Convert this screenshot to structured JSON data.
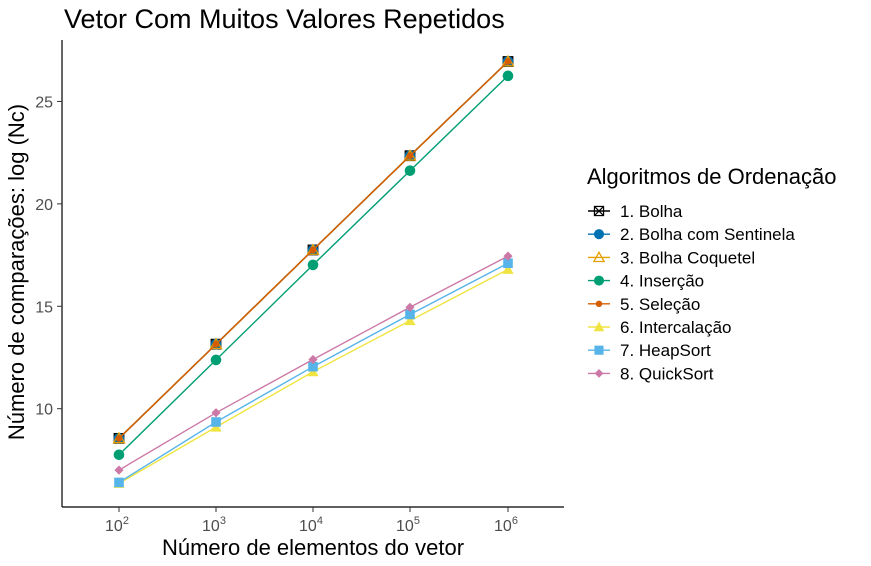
{
  "chart_data": {
    "type": "line",
    "title": "Vetor Com Muitos Valores Repetidos",
    "xlabel": "Número de elementos do vetor",
    "ylabel": "Número de comparações: log (Nc)",
    "x_scale": "log10",
    "x": [
      100,
      1000,
      10000,
      100000,
      1000000
    ],
    "x_tick_labels": [
      {
        "base": "10",
        "exp": "2"
      },
      {
        "base": "10",
        "exp": "3"
      },
      {
        "base": "10",
        "exp": "4"
      },
      {
        "base": "10",
        "exp": "5"
      },
      {
        "base": "10",
        "exp": "6"
      }
    ],
    "y_ticks": [
      10,
      15,
      20,
      25
    ],
    "y_tick_labels": [
      "10",
      "15",
      "20",
      "25"
    ],
    "ylim": [
      5.2,
      28.0
    ],
    "grid": false,
    "legend": {
      "title": "Algoritmos de Ordenação",
      "position": "right"
    },
    "series": [
      {
        "name": "1. Bolha",
        "color": "#000000",
        "marker": "square-x",
        "values": [
          8.55,
          13.15,
          17.75,
          22.35,
          26.95
        ]
      },
      {
        "name": "2. Bolha com Sentinela",
        "color": "#0072B2",
        "marker": "circle",
        "values": [
          8.55,
          13.15,
          17.75,
          22.35,
          26.95
        ]
      },
      {
        "name": "3. Bolha Coquetel",
        "color": "#E69F00",
        "marker": "open-triangle",
        "values": [
          8.55,
          13.15,
          17.75,
          22.35,
          26.95
        ]
      },
      {
        "name": "4. Inserção",
        "color": "#009E73",
        "marker": "circle",
        "values": [
          7.75,
          12.38,
          17.02,
          21.62,
          26.25
        ]
      },
      {
        "name": "5. Seleção",
        "color": "#D55E00",
        "marker": "small-circle",
        "values": [
          8.55,
          13.15,
          17.75,
          22.35,
          26.95
        ]
      },
      {
        "name": "6. Intercalação",
        "color": "#F0E442",
        "marker": "triangle",
        "values": [
          6.35,
          9.1,
          11.8,
          14.3,
          16.8
        ]
      },
      {
        "name": "7. HeapSort",
        "color": "#56B4E9",
        "marker": "square",
        "values": [
          6.4,
          9.35,
          12.05,
          14.6,
          17.1
        ]
      },
      {
        "name": "8. QuickSort",
        "color": "#CC79A7",
        "marker": "diamond",
        "values": [
          7.0,
          9.8,
          12.4,
          14.95,
          17.45
        ]
      }
    ]
  }
}
